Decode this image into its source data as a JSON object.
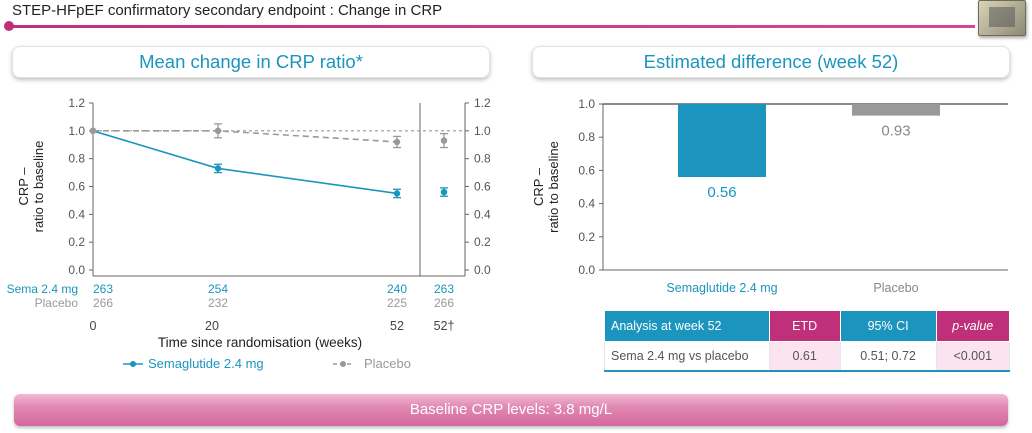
{
  "header": {
    "title": "STEP-HFpEF confirmatory secondary endpoint : Change in CRP"
  },
  "left_panel": {
    "title": "Mean change in CRP ratio*"
  },
  "right_panel": {
    "title": "Estimated difference (week 52)"
  },
  "colors": {
    "sema": "#1b95bd",
    "placebo": "#999999",
    "accent": "#c0307a"
  },
  "chart_data": [
    {
      "type": "line",
      "title": "Mean change in CRP ratio*",
      "xlabel": "Time since randomisation (weeks)",
      "ylabel": "CRP – ratio to baseline",
      "ylabel_lines": [
        "CRP –",
        "ratio to baseline"
      ],
      "ylim": [
        0,
        1.2
      ],
      "yticks": [
        "0.0",
        "0.2",
        "0.4",
        "0.6",
        "0.8",
        "1.0",
        "1.2"
      ],
      "yticks_right": [
        "0.0",
        "0.2",
        "0.4",
        "0.6",
        "0.8",
        "1.0",
        "1.2"
      ],
      "x": [
        0,
        20,
        52
      ],
      "xticks": [
        "0",
        "20",
        "52",
        "52†"
      ],
      "series": [
        {
          "name": "Semaglutide 2.4 mg",
          "values": [
            1.0,
            0.73,
            0.55
          ],
          "err": [
            0.0,
            0.03,
            0.03
          ],
          "week52_final": 0.56,
          "week52_final_err": 0.03
        },
        {
          "name": "Placebo",
          "values": [
            1.0,
            1.0,
            0.92
          ],
          "err": [
            0.0,
            0.05,
            0.04
          ],
          "week52_final": 0.93,
          "week52_final_err": 0.05
        }
      ],
      "at_risk": {
        "rows": [
          {
            "label": "Sema 2.4 mg",
            "values": [
              "263",
              "254",
              "240",
              "263"
            ]
          },
          {
            "label": "Placebo",
            "values": [
              "266",
              "232",
              "225",
              "266"
            ]
          }
        ]
      },
      "legend": [
        "Semaglutide 2.4 mg",
        "Placebo"
      ],
      "legend_position": "bottom",
      "reference_line": 1.0
    },
    {
      "type": "bar",
      "title": "Estimated difference (week 52)",
      "ylabel": "CRP – ratio to baseline",
      "ylabel_lines": [
        "CRP –",
        "ratio to baseline"
      ],
      "categories": [
        "Semaglutide 2.4 mg",
        "Placebo"
      ],
      "values": [
        0.56,
        0.93
      ],
      "value_labels": [
        "0.56",
        "0.93"
      ],
      "ylim": [
        0,
        1.0
      ],
      "yticks": [
        "0.0",
        "0.2",
        "0.4",
        "0.6",
        "0.8",
        "1.0"
      ],
      "baseline": 1.0
    }
  ],
  "table": {
    "headers": [
      "Analysis at week 52",
      "ETD",
      "95% CI",
      "p-value"
    ],
    "rows": [
      [
        "Sema 2.4 mg vs placebo",
        "0.61",
        "0.51; 0.72",
        "<0.001"
      ]
    ]
  },
  "bottom_bar": {
    "text": "Baseline CRP levels: 3.8 mg/L"
  }
}
